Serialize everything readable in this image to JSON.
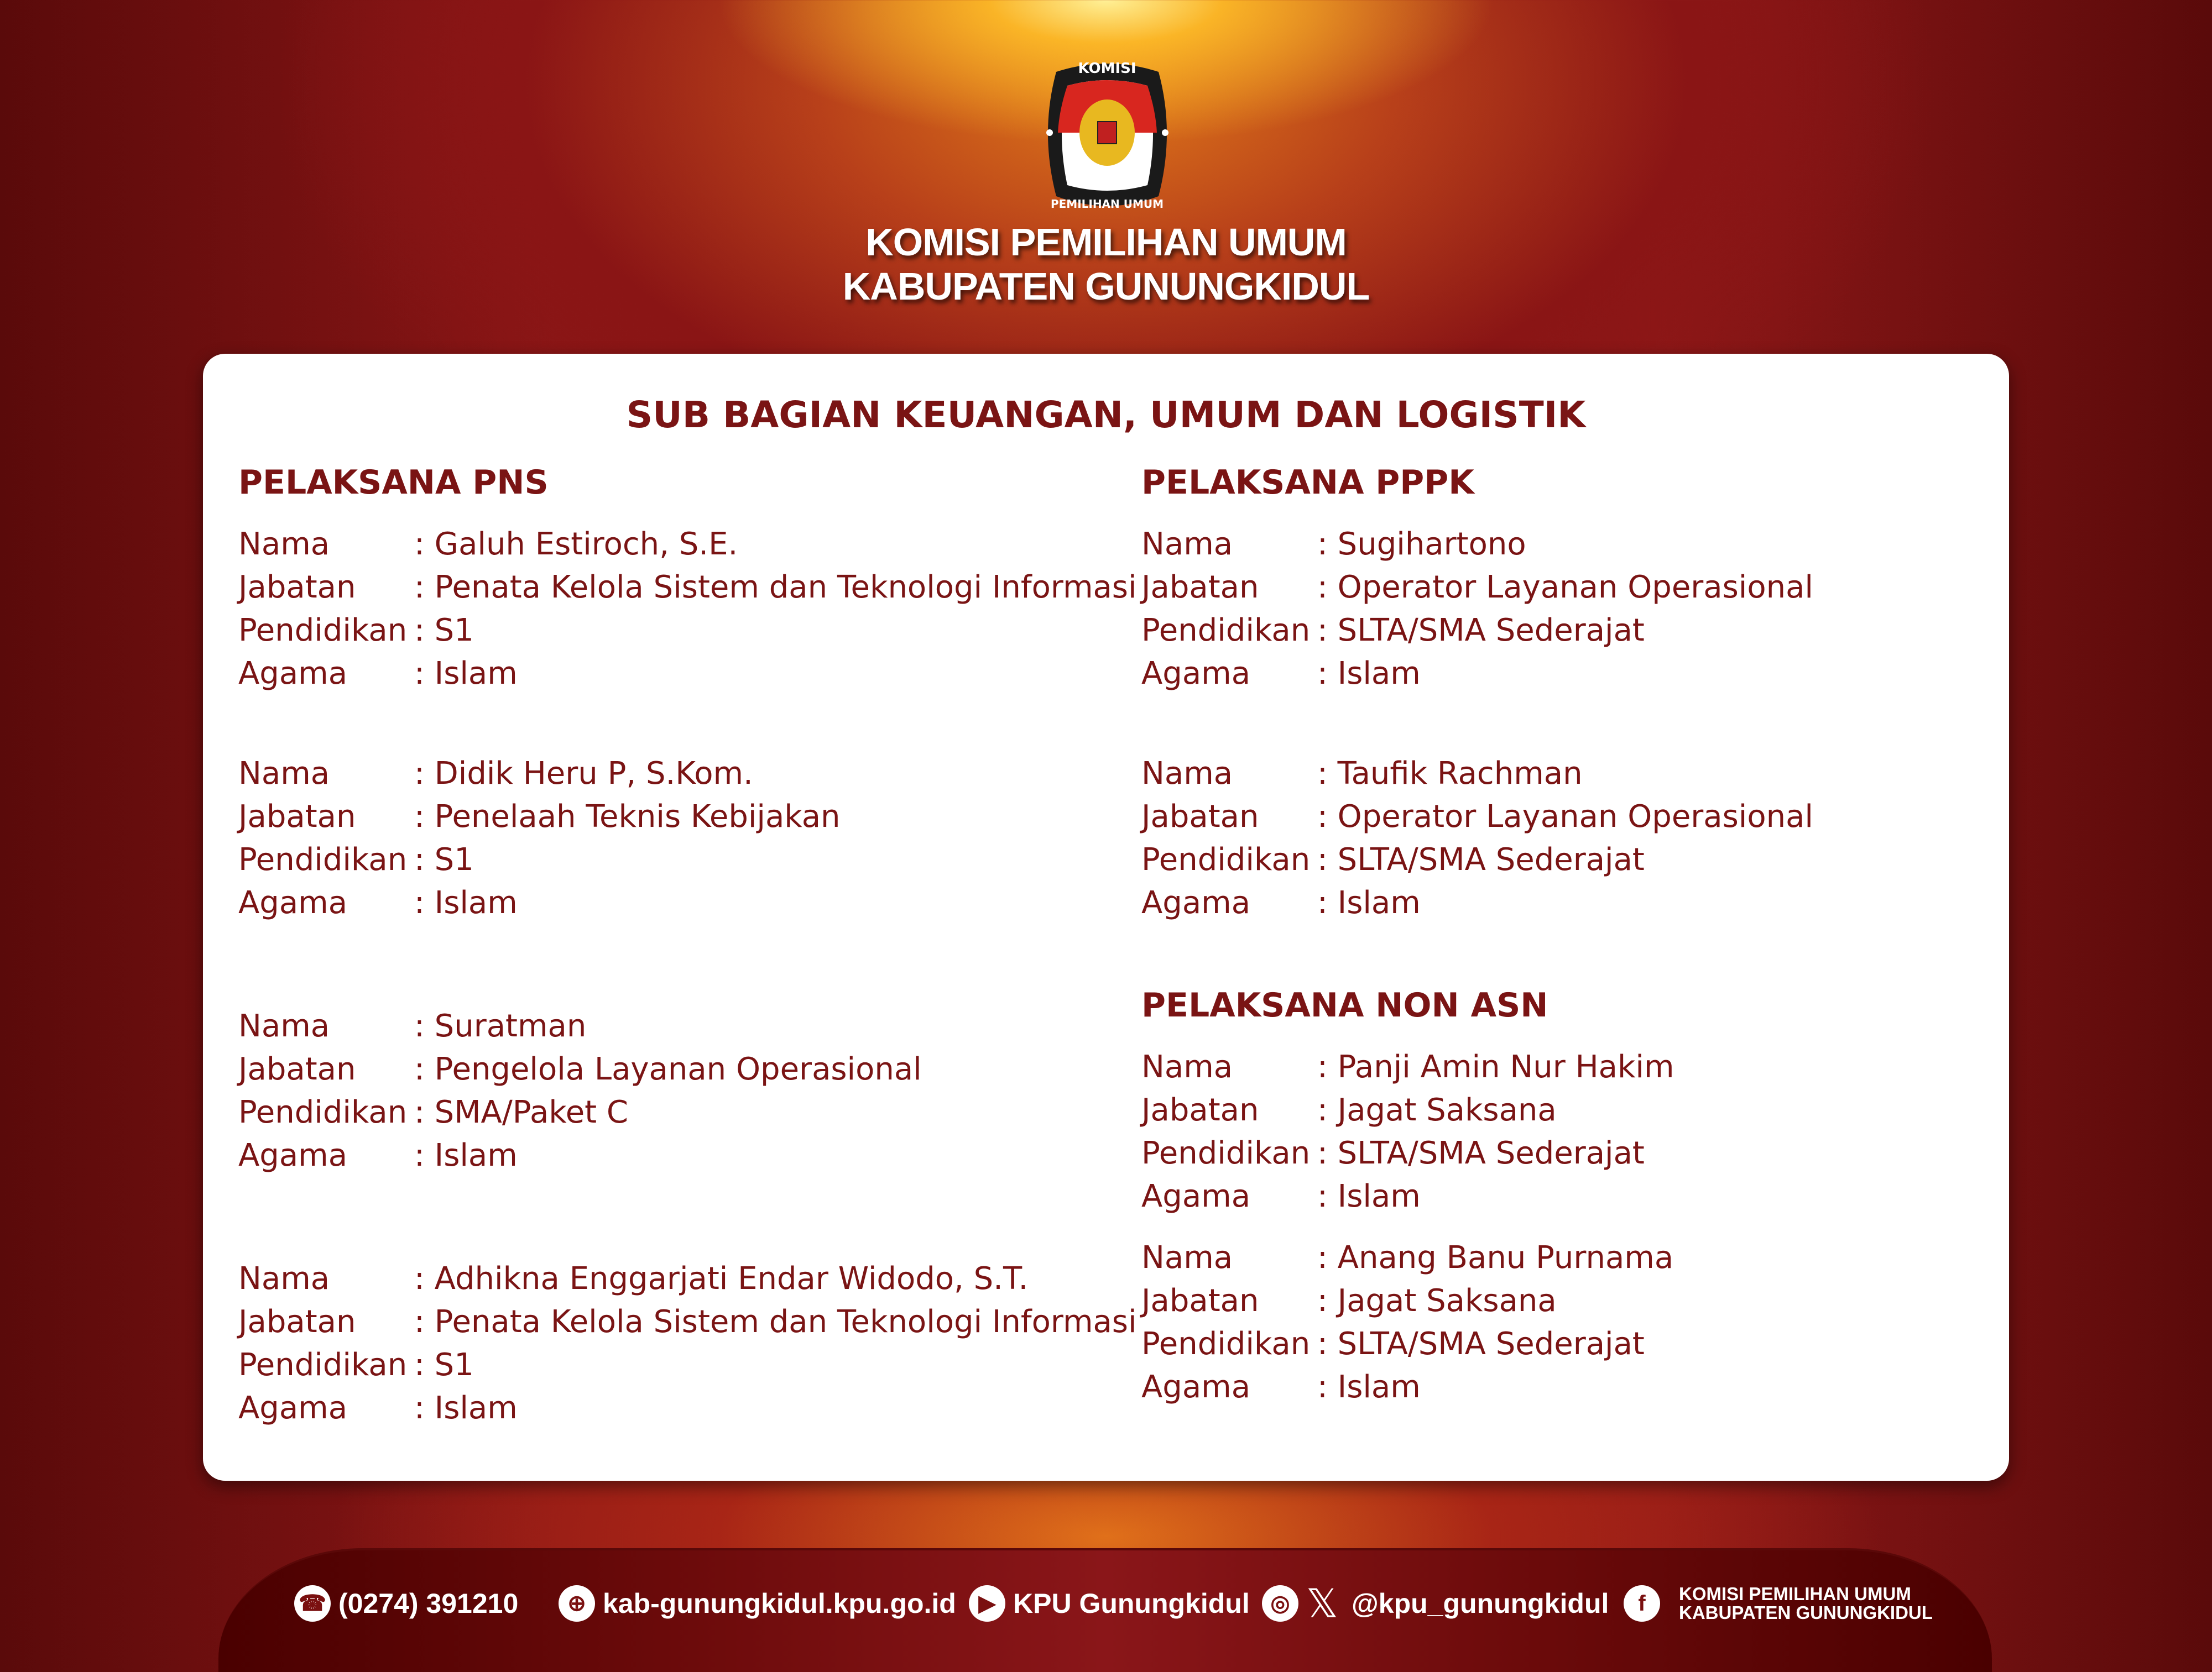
{
  "header": {
    "logo_text_top": "KOMISI",
    "logo_text_bottom": "PEMILIHAN UMUM",
    "org_line1": "KOMISI PEMILIHAN UMUM",
    "org_line2": "KABUPATEN GUNUNGKIDUL"
  },
  "card": {
    "title": "SUB BAGIAN KEUANGAN, UMUM DAN LOGISTIK",
    "labels": {
      "nama": "Nama",
      "jabatan": "Jabatan",
      "pendidikan": "Pendidikan",
      "agama": "Agama"
    },
    "sections": [
      {
        "heading": "PELAKSANA PNS",
        "entries": [
          {
            "nama": "Galuh Estiroch, S.E.",
            "jabatan": "Penata Kelola Sistem dan Teknologi Informasi",
            "pendidikan": "S1",
            "agama": "Islam"
          },
          {
            "nama": "Didik Heru P, S.Kom.",
            "jabatan": "Penelaah Teknis Kebijakan",
            "pendidikan": "S1",
            "agama": "Islam"
          },
          {
            "nama": "Suratman",
            "jabatan": "Pengelola Layanan Operasional",
            "pendidikan": "SMA/Paket C",
            "agama": "Islam"
          },
          {
            "nama": "Adhikna Enggarjati Endar Widodo, S.T.",
            "jabatan": "Penata Kelola Sistem dan Teknologi Informasi",
            "pendidikan": "S1",
            "agama": "Islam"
          }
        ]
      },
      {
        "heading": "PELAKSANA PPPK",
        "entries": [
          {
            "nama": "Sugihartono",
            "jabatan": "Operator Layanan Operasional",
            "pendidikan": "SLTA/SMA Sederajat",
            "agama": "Islam"
          },
          {
            "nama": "Taufik Rachman",
            "jabatan": "Operator Layanan Operasional",
            "pendidikan": "SLTA/SMA Sederajat",
            "agama": "Islam"
          }
        ]
      },
      {
        "heading": "PELAKSANA NON ASN",
        "entries": [
          {
            "nama": "Panji Amin Nur Hakim",
            "jabatan": "Jagat Saksana",
            "pendidikan": "SLTA/SMA Sederajat",
            "agama": "Islam"
          },
          {
            "nama": "Anang Banu Purnama",
            "jabatan": "Jagat Saksana",
            "pendidikan": "SLTA/SMA Sederajat",
            "agama": "Islam"
          }
        ]
      }
    ]
  },
  "footer": {
    "phone": "(0274) 391210",
    "website": "kab-gunungkidul.kpu.go.id",
    "youtube": "KPU Gunungkidul",
    "social_handle": "@kpu_gunungkidul",
    "facebook_line1": "KOMISI PEMILIHAN UMUM",
    "facebook_line2": "KABUPATEN GUNUNGKIDUL",
    "icons": [
      "phone-icon",
      "globe-icon",
      "youtube-icon",
      "instagram-icon",
      "x-icon",
      "facebook-icon"
    ]
  },
  "colors": {
    "accent": "#7a1414",
    "background": "#8a1616",
    "highlight": "#f5a623"
  }
}
